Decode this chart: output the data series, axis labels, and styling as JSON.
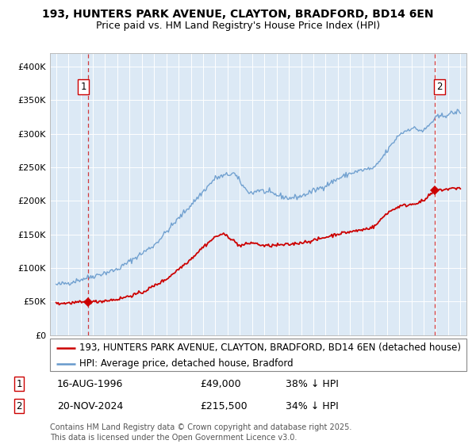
{
  "title": "193, HUNTERS PARK AVENUE, CLAYTON, BRADFORD, BD14 6EN",
  "subtitle": "Price paid vs. HM Land Registry's House Price Index (HPI)",
  "ylim": [
    0,
    420000
  ],
  "yticks": [
    0,
    50000,
    100000,
    150000,
    200000,
    250000,
    300000,
    350000,
    400000
  ],
  "ytick_labels": [
    "£0",
    "£50K",
    "£100K",
    "£150K",
    "£200K",
    "£250K",
    "£300K",
    "£350K",
    "£400K"
  ],
  "xlim_start": 1993.5,
  "xlim_end": 2027.5,
  "transactions": [
    {
      "date_num": 1996.62,
      "price": 49000,
      "label": "1"
    },
    {
      "date_num": 2024.9,
      "price": 215500,
      "label": "2"
    }
  ],
  "legend_line1": "193, HUNTERS PARK AVENUE, CLAYTON, BRADFORD, BD14 6EN (detached house)",
  "legend_line2": "HPI: Average price, detached house, Bradford",
  "trans1_date": "16-AUG-1996",
  "trans1_price": "£49,000",
  "trans1_hpi": "38% ↓ HPI",
  "trans2_date": "20-NOV-2024",
  "trans2_price": "£215,500",
  "trans2_hpi": "34% ↓ HPI",
  "footnote": "Contains HM Land Registry data © Crown copyright and database right 2025.\nThis data is licensed under the Open Government Licence v3.0.",
  "red_line_color": "#cc0000",
  "blue_line_color": "#6699cc",
  "dashed_color": "#cc0000",
  "bg_color": "#dce9f5",
  "grid_color": "#ffffff",
  "title_fontsize": 10,
  "subtitle_fontsize": 9,
  "tick_fontsize": 8,
  "legend_fontsize": 8.5,
  "annot_fontsize": 9,
  "footnote_fontsize": 7
}
